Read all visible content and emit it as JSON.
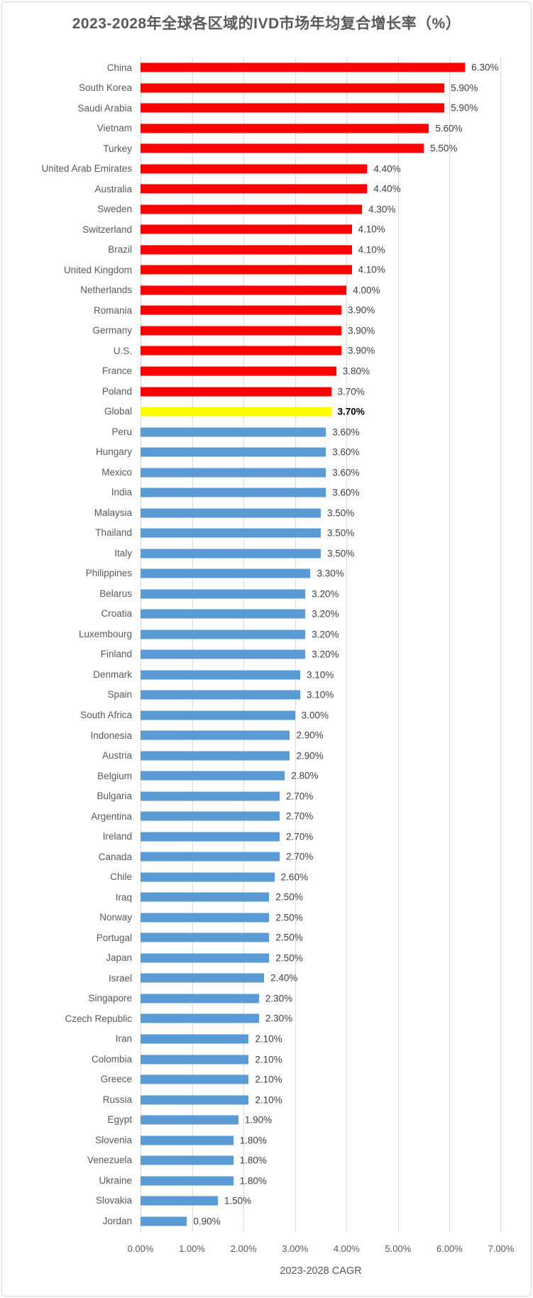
{
  "chart_data": {
    "type": "bar",
    "orientation": "horizontal",
    "title": "2023-2028年全球各区域的IVD市场年均复合增长率（%）",
    "xlabel": "2023-2028 CAGR",
    "legend": false,
    "grid": true,
    "x_axis": {
      "min": 0,
      "max": 7,
      "unit": "%",
      "tick_labels": [
        "0.00%",
        "1.00%",
        "2.00%",
        "3.00%",
        "4.00%",
        "5.00%",
        "6.00%",
        "7.00%"
      ]
    },
    "highlight_category": "Global",
    "colors": {
      "above": "#FF0000",
      "global": "#FFFF00",
      "below": "#5B9BD5"
    },
    "style": {
      "title_color": "#595959",
      "axis_text_color": "#595959",
      "value_label_color": "#404040",
      "value_label_highlight_color": "#000000",
      "gridline_color": "#D9D9D9",
      "frame_border_color": "#D9D9D9",
      "background": "#FFFFFF"
    },
    "items": [
      {
        "label": "China",
        "value": 6.3,
        "display": "6.30%",
        "group": "above"
      },
      {
        "label": "South Korea",
        "value": 5.9,
        "display": "5.90%",
        "group": "above"
      },
      {
        "label": "Saudi Arabia",
        "value": 5.9,
        "display": "5.90%",
        "group": "above"
      },
      {
        "label": "Vietnam",
        "value": 5.6,
        "display": "5.60%",
        "group": "above"
      },
      {
        "label": "Turkey",
        "value": 5.5,
        "display": "5.50%",
        "group": "above"
      },
      {
        "label": "United Arab Emirates",
        "value": 4.4,
        "display": "4.40%",
        "group": "above"
      },
      {
        "label": "Australia",
        "value": 4.4,
        "display": "4.40%",
        "group": "above"
      },
      {
        "label": "Sweden",
        "value": 4.3,
        "display": "4.30%",
        "group": "above"
      },
      {
        "label": "Switzerland",
        "value": 4.1,
        "display": "4.10%",
        "group": "above"
      },
      {
        "label": "Brazil",
        "value": 4.1,
        "display": "4.10%",
        "group": "above"
      },
      {
        "label": "United Kingdom",
        "value": 4.1,
        "display": "4.10%",
        "group": "above"
      },
      {
        "label": "Netherlands",
        "value": 4.0,
        "display": "4.00%",
        "group": "above"
      },
      {
        "label": "Romania",
        "value": 3.9,
        "display": "3.90%",
        "group": "above"
      },
      {
        "label": "Germany",
        "value": 3.9,
        "display": "3.90%",
        "group": "above"
      },
      {
        "label": "U.S.",
        "value": 3.9,
        "display": "3.90%",
        "group": "above"
      },
      {
        "label": "France",
        "value": 3.8,
        "display": "3.80%",
        "group": "above"
      },
      {
        "label": "Poland",
        "value": 3.7,
        "display": "3.70%",
        "group": "above"
      },
      {
        "label": "Global",
        "value": 3.7,
        "display": "3.70%",
        "group": "global"
      },
      {
        "label": "Peru",
        "value": 3.6,
        "display": "3.60%",
        "group": "below"
      },
      {
        "label": "Hungary",
        "value": 3.6,
        "display": "3.60%",
        "group": "below"
      },
      {
        "label": "Mexico",
        "value": 3.6,
        "display": "3.60%",
        "group": "below"
      },
      {
        "label": "India",
        "value": 3.6,
        "display": "3.60%",
        "group": "below"
      },
      {
        "label": "Malaysia",
        "value": 3.5,
        "display": "3.50%",
        "group": "below"
      },
      {
        "label": "Thailand",
        "value": 3.5,
        "display": "3.50%",
        "group": "below"
      },
      {
        "label": "Italy",
        "value": 3.5,
        "display": "3.50%",
        "group": "below"
      },
      {
        "label": "Philippines",
        "value": 3.3,
        "display": "3.30%",
        "group": "below"
      },
      {
        "label": "Belarus",
        "value": 3.2,
        "display": "3.20%",
        "group": "below"
      },
      {
        "label": "Croatia",
        "value": 3.2,
        "display": "3.20%",
        "group": "below"
      },
      {
        "label": "Luxembourg",
        "value": 3.2,
        "display": "3.20%",
        "group": "below"
      },
      {
        "label": "Finland",
        "value": 3.2,
        "display": "3.20%",
        "group": "below"
      },
      {
        "label": "Denmark",
        "value": 3.1,
        "display": "3.10%",
        "group": "below"
      },
      {
        "label": "Spain",
        "value": 3.1,
        "display": "3.10%",
        "group": "below"
      },
      {
        "label": "South Africa",
        "value": 3.0,
        "display": "3.00%",
        "group": "below"
      },
      {
        "label": "Indonesia",
        "value": 2.9,
        "display": "2.90%",
        "group": "below"
      },
      {
        "label": "Austria",
        "value": 2.9,
        "display": "2.90%",
        "group": "below"
      },
      {
        "label": "Belgium",
        "value": 2.8,
        "display": "2.80%",
        "group": "below"
      },
      {
        "label": "Bulgaria",
        "value": 2.7,
        "display": "2.70%",
        "group": "below"
      },
      {
        "label": "Argentina",
        "value": 2.7,
        "display": "2.70%",
        "group": "below"
      },
      {
        "label": "Ireland",
        "value": 2.7,
        "display": "2.70%",
        "group": "below"
      },
      {
        "label": "Canada",
        "value": 2.7,
        "display": "2.70%",
        "group": "below"
      },
      {
        "label": "Chile",
        "value": 2.6,
        "display": "2.60%",
        "group": "below"
      },
      {
        "label": "Iraq",
        "value": 2.5,
        "display": "2.50%",
        "group": "below"
      },
      {
        "label": "Norway",
        "value": 2.5,
        "display": "2.50%",
        "group": "below"
      },
      {
        "label": "Portugal",
        "value": 2.5,
        "display": "2.50%",
        "group": "below"
      },
      {
        "label": "Japan",
        "value": 2.5,
        "display": "2.50%",
        "group": "below"
      },
      {
        "label": "Israel",
        "value": 2.4,
        "display": "2.40%",
        "group": "below"
      },
      {
        "label": "Singapore",
        "value": 2.3,
        "display": "2.30%",
        "group": "below"
      },
      {
        "label": "Czech Republic",
        "value": 2.3,
        "display": "2.30%",
        "group": "below"
      },
      {
        "label": "Iran",
        "value": 2.1,
        "display": "2.10%",
        "group": "below"
      },
      {
        "label": "Colombia",
        "value": 2.1,
        "display": "2.10%",
        "group": "below"
      },
      {
        "label": "Greece",
        "value": 2.1,
        "display": "2.10%",
        "group": "below"
      },
      {
        "label": "Russia",
        "value": 2.1,
        "display": "2.10%",
        "group": "below"
      },
      {
        "label": "Egypt",
        "value": 1.9,
        "display": "1.90%",
        "group": "below"
      },
      {
        "label": "Slovenia",
        "value": 1.8,
        "display": "1.80%",
        "group": "below"
      },
      {
        "label": "Venezuela",
        "value": 1.8,
        "display": "1.80%",
        "group": "below"
      },
      {
        "label": "Ukraine",
        "value": 1.8,
        "display": "1.80%",
        "group": "below"
      },
      {
        "label": "Slovakia",
        "value": 1.5,
        "display": "1.50%",
        "group": "below"
      },
      {
        "label": "Jordan",
        "value": 0.9,
        "display": "0.90%",
        "group": "below"
      }
    ]
  }
}
